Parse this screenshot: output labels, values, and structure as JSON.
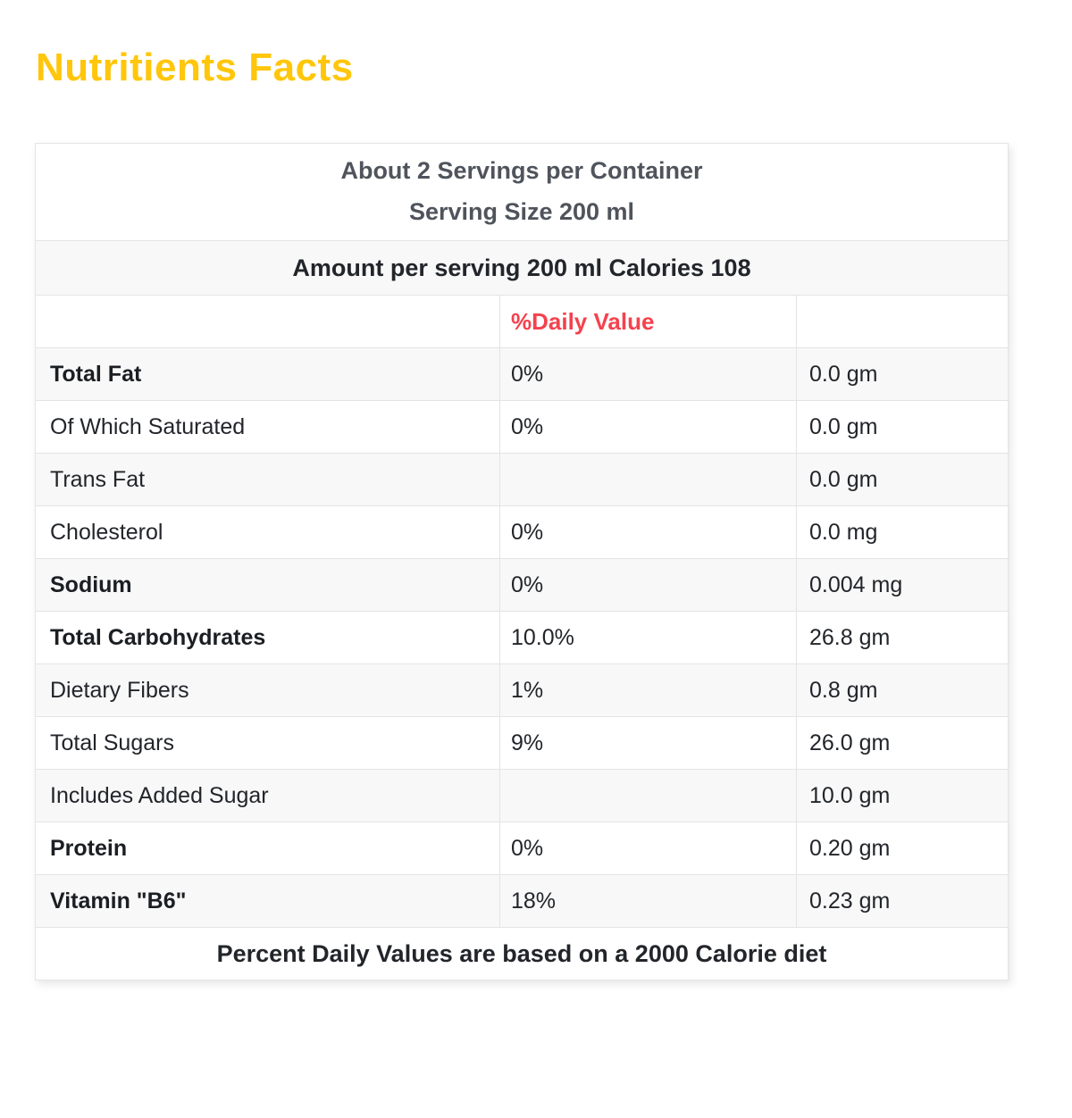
{
  "title": "Nutritients Facts",
  "colors": {
    "title_color": "#ffc60b",
    "accent_red": "#f4424e",
    "header_text": "#4f545c",
    "body_text": "#22252a",
    "border": "#e4e4e4",
    "stripe": "#f8f8f8"
  },
  "table": {
    "servings_line": "About 2 Servings per Container",
    "serving_size_line": "Serving Size 200 ml",
    "amount_line": "Amount per serving 200 ml Calories 108",
    "daily_value_header": "%Daily Value",
    "rows": [
      {
        "label": "Total Fat",
        "bold": true,
        "daily_value": "0%",
        "amount": "0.0 gm"
      },
      {
        "label": "Of Which Saturated",
        "bold": false,
        "daily_value": "0%",
        "amount": "0.0 gm"
      },
      {
        "label": "Trans Fat",
        "bold": false,
        "daily_value": "",
        "amount": "0.0 gm"
      },
      {
        "label": "Cholesterol",
        "bold": false,
        "daily_value": "0%",
        "amount": "0.0 mg"
      },
      {
        "label": "Sodium",
        "bold": true,
        "daily_value": "0%",
        "amount": "0.004 mg"
      },
      {
        "label": "Total Carbohydrates",
        "bold": true,
        "daily_value": "10.0%",
        "amount": "26.8 gm"
      },
      {
        "label": "Dietary Fibers",
        "bold": false,
        "daily_value": "1%",
        "amount": "0.8 gm"
      },
      {
        "label": "Total Sugars",
        "bold": false,
        "daily_value": "9%",
        "amount": "26.0 gm"
      },
      {
        "label": "Includes Added Sugar",
        "bold": false,
        "daily_value": "",
        "amount": "10.0 gm"
      },
      {
        "label": "Protein",
        "bold": true,
        "daily_value": "0%",
        "amount": "0.20 gm"
      },
      {
        "label": "Vitamin \"B6\"",
        "bold": true,
        "daily_value": "18%",
        "amount": "0.23 gm"
      }
    ],
    "footer": "Percent Daily Values are based on a 2000 Calorie diet"
  }
}
